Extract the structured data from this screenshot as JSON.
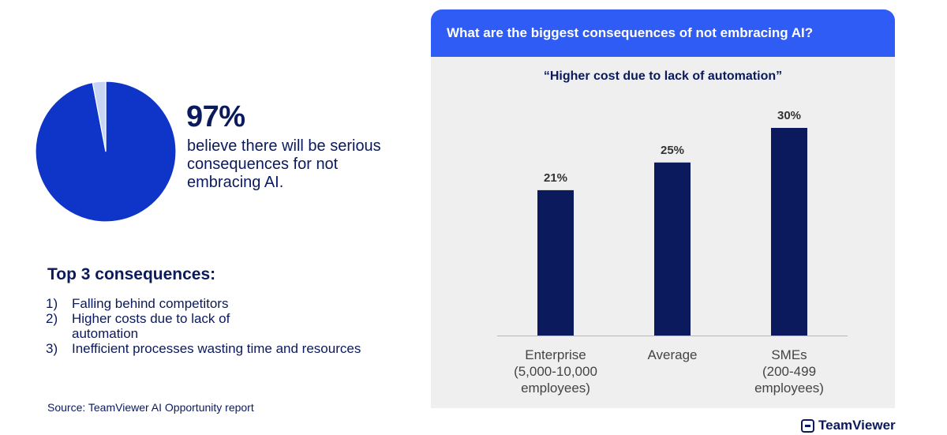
{
  "colors": {
    "navy": "#0b1a5c",
    "pie_blue": "#0f35c8",
    "pie_light": "#c9d4f5",
    "header_blue": "#2f5cf5",
    "panel_bg": "#efefef"
  },
  "pie": {
    "value_percent": 97,
    "big_label": "97%",
    "headline": "believe there will be serious consequences for not embracing AI."
  },
  "top3": {
    "title": "Top 3 consequences:",
    "items": [
      {
        "num": "1)",
        "text": "Falling behind competitors"
      },
      {
        "num": "2)",
        "text": "Higher costs due to lack of automation"
      },
      {
        "num": "3)",
        "text": "Inefficient processes wasting time and resources"
      }
    ]
  },
  "source": "Source: TeamViewer AI Opportunity report",
  "panel": {
    "header": "What are the biggest consequences of not embracing AI?",
    "subtitle": "“Higher cost due to lack of automation”"
  },
  "chart_data": [
    {
      "type": "pie",
      "values": [
        97,
        3
      ]
    },
    {
      "type": "bar",
      "title": "“Higher cost due to lack of automation”",
      "categories": [
        "Enterprise (5,000-10,000 employees)",
        "Average",
        "SMEs (200-499 employees)"
      ],
      "category_lines": [
        [
          "Enterprise",
          "(5,000-10,000",
          "employees)"
        ],
        [
          "Average"
        ],
        [
          "SMEs",
          "(200-499",
          "employees)"
        ]
      ],
      "values": [
        21,
        25,
        30
      ],
      "data_labels": [
        "21%",
        "25%",
        "30%"
      ],
      "ylim": [
        0,
        30
      ],
      "grid": false
    }
  ],
  "brand": "TeamViewer"
}
